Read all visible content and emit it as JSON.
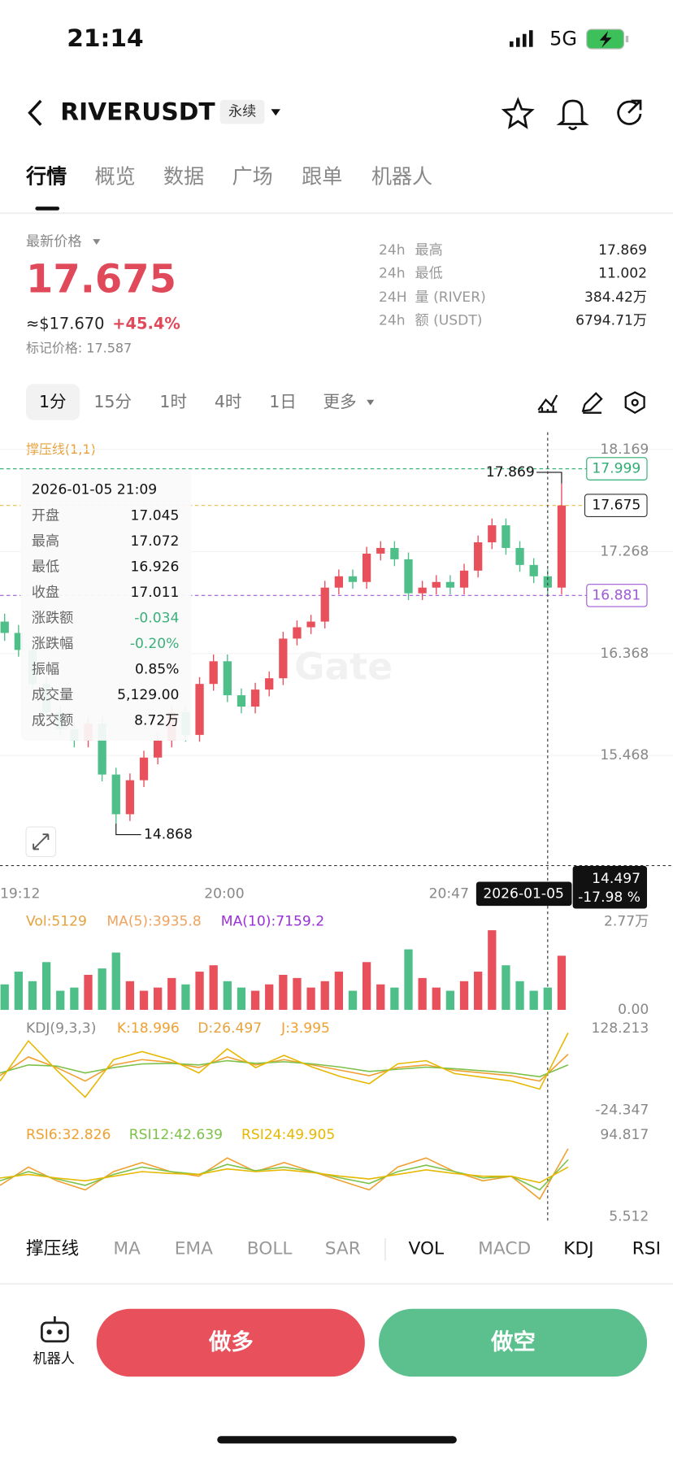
{
  "status": {
    "time": "21:14",
    "network": "5G"
  },
  "header": {
    "symbol": "RIVERUSDT",
    "contract": "永续"
  },
  "tabs": [
    "行情",
    "概览",
    "数据",
    "广场",
    "跟单",
    "机器人"
  ],
  "price": {
    "label": "最新价格",
    "last": "17.675",
    "usd": "≈$17.670",
    "change": "+45.4%",
    "mark": "标记价格: 17.587"
  },
  "stats": [
    {
      "period": "24h",
      "label": "最高",
      "value": "17.869"
    },
    {
      "period": "24h",
      "label": "最低",
      "value": "11.002"
    },
    {
      "period": "24H",
      "label": "量 (RIVER)",
      "value": "384.42万"
    },
    {
      "period": "24h",
      "label": "额 (USDT)",
      "value": "6794.71万"
    }
  ],
  "intervals": [
    "1分",
    "15分",
    "1时",
    "4时",
    "1日",
    "更多"
  ],
  "chart_data": {
    "type": "candlestick",
    "indicator": "撑压线(1,1)",
    "x_labels": [
      "19:12",
      "20:00",
      "20:47"
    ],
    "open": [
      16.65,
      16.55,
      16.4,
      16.1,
      15.85,
      15.7,
      15.6,
      15.75,
      15.3,
      14.95,
      15.25,
      15.45,
      15.6,
      15.85,
      15.65,
      16.1,
      16.3,
      16.0,
      15.9,
      16.05,
      16.15,
      16.5,
      16.6,
      16.65,
      16.95,
      17.05,
      17.0,
      17.25,
      17.3,
      17.2,
      16.9,
      16.95,
      17.0,
      16.95,
      17.1,
      17.35,
      17.5,
      17.3,
      17.15,
      17.05,
      16.95
    ],
    "high": [
      16.72,
      16.62,
      16.46,
      16.16,
      15.91,
      15.76,
      15.81,
      15.81,
      15.36,
      15.31,
      15.51,
      15.66,
      15.91,
      15.91,
      16.16,
      16.36,
      16.36,
      16.06,
      16.11,
      16.21,
      16.56,
      16.66,
      16.71,
      17.01,
      17.11,
      17.11,
      17.31,
      17.36,
      17.36,
      17.26,
      17.01,
      17.06,
      17.06,
      17.16,
      17.41,
      17.56,
      17.56,
      17.36,
      17.21,
      17.11,
      17.869
    ],
    "low": [
      16.48,
      16.34,
      16.04,
      15.79,
      15.64,
      15.54,
      15.54,
      15.24,
      14.868,
      14.89,
      15.19,
      15.39,
      15.54,
      15.59,
      15.59,
      16.04,
      15.94,
      15.84,
      15.84,
      15.99,
      16.09,
      16.44,
      16.54,
      16.59,
      16.89,
      16.94,
      16.94,
      17.19,
      17.14,
      16.84,
      16.84,
      16.89,
      16.89,
      16.89,
      17.04,
      17.29,
      17.24,
      17.09,
      16.99,
      16.89,
      16.89
    ],
    "close": [
      16.55,
      16.4,
      16.1,
      15.85,
      15.7,
      15.6,
      15.75,
      15.3,
      14.95,
      15.25,
      15.45,
      15.6,
      15.85,
      15.65,
      16.1,
      16.3,
      16.0,
      15.9,
      16.05,
      16.15,
      16.5,
      16.6,
      16.65,
      16.95,
      17.05,
      17.0,
      17.25,
      17.3,
      17.2,
      16.9,
      16.95,
      17.0,
      16.95,
      17.1,
      17.35,
      17.5,
      17.3,
      17.15,
      17.05,
      16.95,
      17.675
    ],
    "up_color": "#e8505b",
    "down_color": "#4fbf8a",
    "ylim": [
      14.387,
      18.28
    ],
    "yticks": [
      18.169,
      17.268,
      16.368,
      15.468
    ],
    "price_lines": [
      {
        "value": 17.999,
        "color": "#2fae74"
      },
      {
        "value": 16.881,
        "color": "#a05ad8"
      }
    ],
    "crosshair": {
      "date": "2026-01-05",
      "price": 14.497,
      "percent": "-17.98 %"
    },
    "tooltip": {
      "time": "2026-01-05 21:09",
      "rows": [
        [
          "开盘",
          "17.045"
        ],
        [
          "最高",
          "17.072"
        ],
        [
          "最低",
          "16.926"
        ],
        [
          "收盘",
          "17.011"
        ],
        [
          "涨跌额",
          "-0.034"
        ],
        [
          "涨跌幅",
          "-0.20%"
        ],
        [
          "振幅",
          "0.85%"
        ],
        [
          "成交量",
          "5,129.00"
        ],
        [
          "成交额",
          "8.72万"
        ]
      ]
    },
    "volume": {
      "legend": [
        "Vol:5129",
        "MA(5):3935.8",
        "MA(10):7159.2"
      ],
      "values": [
        8000,
        12000,
        9000,
        15000,
        6000,
        7000,
        11000,
        13000,
        18000,
        9000,
        6000,
        7000,
        10000,
        8000,
        12000,
        14000,
        9000,
        7000,
        6000,
        8000,
        11000,
        10000,
        7000,
        9000,
        12000,
        6000,
        15000,
        8000,
        7000,
        19000,
        10000,
        7000,
        6000,
        9000,
        12000,
        25000,
        14000,
        9000,
        6000,
        7000,
        17000
      ],
      "ylim": [
        0,
        27700
      ],
      "yticks": [
        {
          "value": 27700,
          "label": "2.77万"
        },
        {
          "value": 0,
          "label": "0.00"
        }
      ]
    },
    "kdj": {
      "legend": [
        "KDJ(9,3,3)",
        "K:18.996",
        "D:26.497",
        "J:3.995"
      ],
      "ylim": [
        -24.347,
        128.213
      ],
      "yticks": [
        128.213,
        -24.347
      ],
      "series": [
        {
          "name": "K",
          "color": "#f0a030",
          "values": [
            40,
            75,
            55,
            30,
            60,
            70,
            65,
            55,
            75,
            60,
            70,
            60,
            50,
            40,
            55,
            60,
            50,
            45,
            40,
            30,
            80
          ]
        },
        {
          "name": "D",
          "color": "#7cc24a",
          "values": [
            45,
            60,
            58,
            45,
            55,
            62,
            63,
            60,
            68,
            63,
            66,
            62,
            56,
            48,
            52,
            56,
            53,
            49,
            45,
            38,
            60
          ]
        },
        {
          "name": "J",
          "color": "#e6b800",
          "values": [
            30,
            105,
            50,
            0,
            70,
            85,
            70,
            45,
            90,
            55,
            78,
            56,
            38,
            25,
            62,
            68,
            44,
            37,
            30,
            15,
            120
          ]
        }
      ]
    },
    "rsi": {
      "legend": [
        "RSI6:32.826",
        "RSI12:42.639",
        "RSI24:49.905"
      ],
      "ylim": [
        5.512,
        94.817
      ],
      "yticks": [
        94.817,
        5.512
      ],
      "series": [
        {
          "name": "RSI6",
          "color": "#f0a030",
          "values": [
            40,
            60,
            45,
            35,
            55,
            65,
            55,
            50,
            70,
            55,
            65,
            55,
            45,
            35,
            60,
            70,
            55,
            45,
            50,
            25,
            80
          ]
        },
        {
          "name": "RSI12",
          "color": "#7cc24a",
          "values": [
            45,
            55,
            47,
            40,
            52,
            60,
            55,
            52,
            63,
            56,
            60,
            55,
            48,
            42,
            55,
            62,
            55,
            48,
            50,
            35,
            68
          ]
        },
        {
          "name": "RSI24",
          "color": "#e6b800",
          "values": [
            48,
            52,
            48,
            45,
            50,
            55,
            53,
            52,
            58,
            55,
            57,
            54,
            50,
            47,
            52,
            57,
            53,
            50,
            50,
            43,
            60
          ]
        }
      ]
    }
  },
  "indicators": [
    "撑压线",
    "MA",
    "EMA",
    "BOLL",
    "SAR",
    "VOL",
    "MACD",
    "KDJ",
    "RSI"
  ],
  "footer": {
    "robot": "机器人",
    "long": "做多",
    "short": "做空"
  }
}
